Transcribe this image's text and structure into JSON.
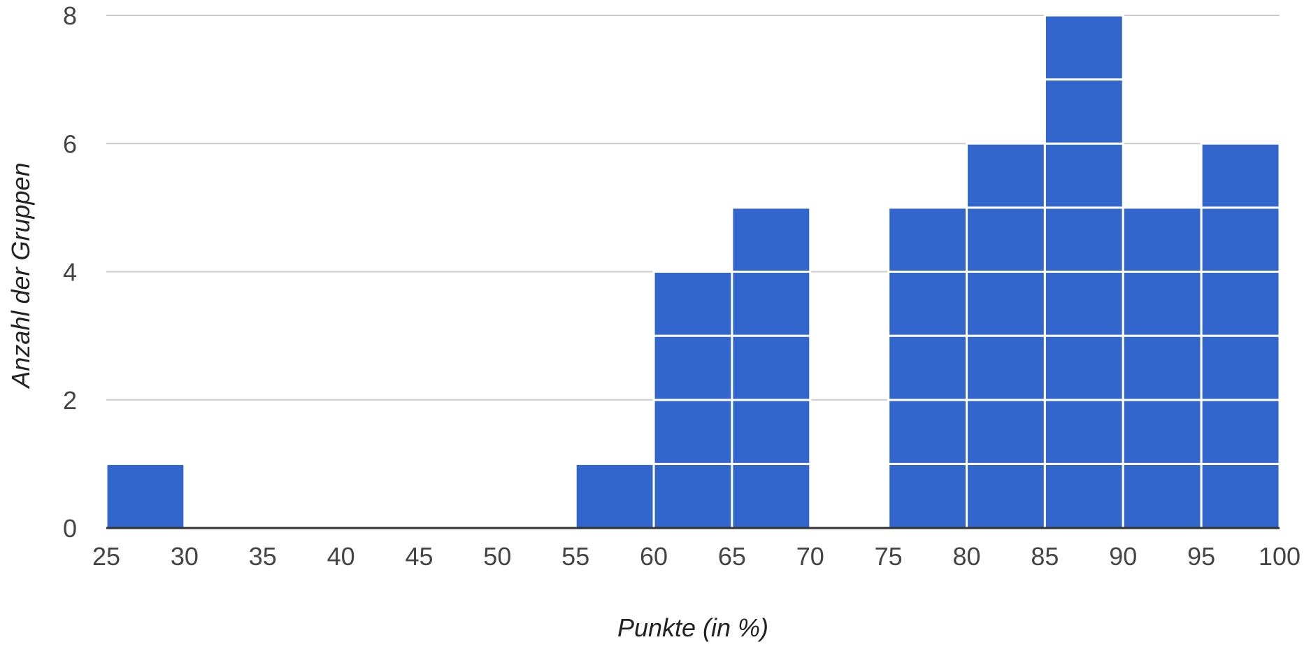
{
  "chart_data": {
    "type": "bar",
    "subtype": "histogram",
    "bin_edges": [
      25,
      30,
      35,
      40,
      45,
      50,
      55,
      60,
      65,
      70,
      75,
      80,
      85,
      90,
      95,
      100
    ],
    "values": [
      1,
      0,
      0,
      0,
      0,
      0,
      1,
      4,
      5,
      0,
      5,
      6,
      8,
      5,
      6
    ],
    "xlabel": "Punkte (in %)",
    "ylabel": "Anzahl der Gruppen",
    "xlim": [
      25,
      100
    ],
    "ylim": [
      0,
      8
    ],
    "x_ticks": [
      "25",
      "30",
      "35",
      "40",
      "45",
      "50",
      "55",
      "60",
      "65",
      "70",
      "75",
      "80",
      "85",
      "90",
      "95",
      "100"
    ],
    "y_ticks": [
      "0",
      "2",
      "4",
      "6",
      "8"
    ],
    "y_tick_values": [
      0,
      2,
      4,
      6,
      8
    ],
    "grid": true,
    "bar_color": "#3366CC",
    "grid_color": "#cccccc",
    "baseline_color": "#333333",
    "legend": "none"
  }
}
